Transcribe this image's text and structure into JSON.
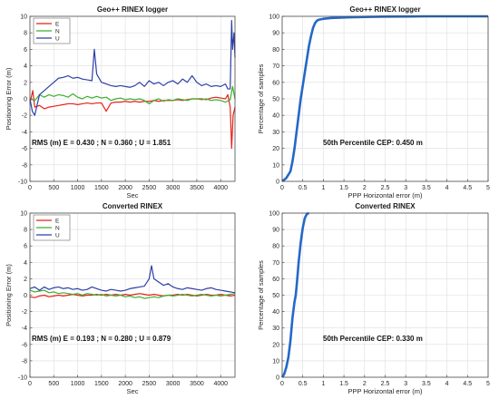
{
  "chart_data": [
    {
      "id": "ts1",
      "type": "line",
      "title": "Geo++ RINEX logger",
      "xlabel": "Sec",
      "ylabel": "Positioning Error (m)",
      "xlim": [
        0,
        4300
      ],
      "ylim": [
        -10,
        10
      ],
      "xticks": [
        0,
        500,
        1000,
        1500,
        2000,
        2500,
        3000,
        3500,
        4000
      ],
      "yticks": [
        -10,
        -8,
        -6,
        -4,
        -2,
        0,
        2,
        4,
        6,
        8,
        10
      ],
      "grid": true,
      "legend": "top-left",
      "annotation": "RMS (m) E = 0.430 ; N = 0.360 ; U = 1.851",
      "series": [
        {
          "name": "E",
          "color": "#e8211b",
          "x": [
            0,
            60,
            100,
            200,
            300,
            400,
            500,
            600,
            700,
            800,
            900,
            1000,
            1100,
            1200,
            1300,
            1400,
            1500,
            1600,
            1700,
            1800,
            1900,
            2000,
            2100,
            2200,
            2300,
            2400,
            2500,
            2600,
            2700,
            2800,
            2900,
            3000,
            3100,
            3200,
            3300,
            3400,
            3500,
            3600,
            3700,
            3800,
            3900,
            4000,
            4100,
            4150,
            4200,
            4230,
            4260,
            4300
          ],
          "y": [
            -0.5,
            1.0,
            -1.0,
            -0.8,
            -1.2,
            -1.0,
            -0.9,
            -0.8,
            -0.7,
            -0.6,
            -0.6,
            -0.7,
            -0.6,
            -0.5,
            -0.6,
            -0.5,
            -0.5,
            -1.5,
            -0.5,
            -0.4,
            -0.4,
            -0.3,
            -0.4,
            -0.3,
            -0.4,
            -0.3,
            -0.3,
            -0.2,
            -0.3,
            -0.2,
            -0.2,
            -0.2,
            -0.1,
            -0.2,
            -0.1,
            0.0,
            0.0,
            0.0,
            -0.1,
            0.1,
            0.2,
            0.1,
            0.0,
            0.5,
            -1.0,
            -6.0,
            -2.0,
            -1.0
          ]
        },
        {
          "name": "N",
          "color": "#3caf2e",
          "x": [
            0,
            100,
            200,
            300,
            400,
            500,
            600,
            700,
            800,
            900,
            1000,
            1100,
            1200,
            1300,
            1400,
            1500,
            1600,
            1700,
            1800,
            1900,
            2000,
            2100,
            2200,
            2300,
            2400,
            2500,
            2600,
            2700,
            2800,
            2900,
            3000,
            3100,
            3200,
            3300,
            3400,
            3500,
            3600,
            3700,
            3800,
            3900,
            4000,
            4100,
            4200,
            4250,
            4300
          ],
          "y": [
            0.0,
            -0.2,
            0.5,
            0.2,
            0.5,
            0.3,
            0.5,
            0.4,
            0.2,
            0.6,
            0.2,
            0.0,
            0.3,
            0.1,
            0.3,
            0.1,
            0.2,
            -0.2,
            0.0,
            0.1,
            -0.1,
            0.0,
            -0.1,
            0.0,
            -0.2,
            -0.6,
            -0.2,
            0.0,
            -0.3,
            -0.1,
            -0.2,
            0.0,
            -0.1,
            -0.2,
            0.0,
            0.0,
            -0.1,
            0.0,
            -0.2,
            -0.1,
            -0.2,
            -0.4,
            -0.1,
            1.5,
            0.0
          ]
        },
        {
          "name": "U",
          "color": "#2e3fa8",
          "x": [
            0,
            50,
            100,
            200,
            300,
            400,
            500,
            600,
            700,
            800,
            900,
            1000,
            1100,
            1200,
            1300,
            1350,
            1400,
            1500,
            1600,
            1700,
            1800,
            1900,
            2000,
            2100,
            2200,
            2300,
            2400,
            2500,
            2600,
            2700,
            2800,
            2900,
            3000,
            3100,
            3200,
            3300,
            3400,
            3500,
            3600,
            3700,
            3800,
            3900,
            4000,
            4100,
            4150,
            4200,
            4230,
            4250,
            4280,
            4300
          ],
          "y": [
            0.0,
            -1.5,
            -2.0,
            0.5,
            1.0,
            1.5,
            2.0,
            2.5,
            2.6,
            2.8,
            2.5,
            2.6,
            2.4,
            2.3,
            2.2,
            6.0,
            3.0,
            2.0,
            1.8,
            1.6,
            1.5,
            1.6,
            1.5,
            1.4,
            1.6,
            2.0,
            1.5,
            2.2,
            1.8,
            2.0,
            1.6,
            2.0,
            2.2,
            1.8,
            2.4,
            2.0,
            2.8,
            2.0,
            1.6,
            1.8,
            1.5,
            1.6,
            1.5,
            1.8,
            1.2,
            1.2,
            9.5,
            6.0,
            8.0,
            5.0
          ]
        }
      ]
    },
    {
      "id": "cdf1",
      "type": "line",
      "title": "Geo++ RINEX logger",
      "xlabel": "PPP Horizontal error (m)",
      "ylabel": "Percentage of samples",
      "xlim": [
        0,
        5
      ],
      "ylim": [
        0,
        100
      ],
      "xticks": [
        "0",
        "0.5",
        "1",
        "1.5",
        "2",
        "2.5",
        "3",
        "3.5",
        "4",
        "4.5",
        "5"
      ],
      "yticks": [
        0,
        10,
        20,
        30,
        40,
        50,
        60,
        70,
        80,
        90,
        100
      ],
      "grid": true,
      "annotation": "50th Percentile CEP: 0.450 m",
      "series": [
        {
          "color": "#2468c8",
          "x": [
            0.0,
            0.1,
            0.2,
            0.25,
            0.3,
            0.35,
            0.4,
            0.45,
            0.5,
            0.55,
            0.6,
            0.65,
            0.7,
            0.75,
            0.8,
            0.85,
            0.9,
            1.0,
            1.2,
            1.5,
            2.0,
            2.5,
            3.0,
            3.5,
            4.0,
            4.5,
            5.0
          ],
          "y": [
            0,
            2,
            6,
            12,
            20,
            30,
            40,
            50,
            58,
            66,
            74,
            82,
            88,
            93,
            96,
            97.5,
            98,
            98.5,
            99,
            99.3,
            99.6,
            99.8,
            99.9,
            100,
            100,
            100,
            100
          ]
        }
      ]
    },
    {
      "id": "ts2",
      "type": "line",
      "title": "Converted RINEX",
      "xlabel": "Sec",
      "ylabel": "Positioning Error (m)",
      "xlim": [
        0,
        4300
      ],
      "ylim": [
        -10,
        10
      ],
      "xticks": [
        0,
        500,
        1000,
        1500,
        2000,
        2500,
        3000,
        3500,
        4000
      ],
      "yticks": [
        -10,
        -8,
        -6,
        -4,
        -2,
        0,
        2,
        4,
        6,
        8,
        10
      ],
      "grid": true,
      "legend": "top-left",
      "annotation": "RMS (m) E = 0.193 ; N = 0.280 ; U = 0.879",
      "series": [
        {
          "name": "E",
          "color": "#e8211b",
          "x": [
            0,
            100,
            200,
            300,
            400,
            500,
            600,
            700,
            800,
            900,
            1000,
            1100,
            1200,
            1300,
            1400,
            1500,
            1600,
            1700,
            1800,
            1900,
            2000,
            2100,
            2200,
            2300,
            2400,
            2500,
            2600,
            2700,
            2800,
            2900,
            3000,
            3100,
            3200,
            3300,
            3400,
            3500,
            3600,
            3700,
            3800,
            3900,
            4000,
            4100,
            4200,
            4300
          ],
          "y": [
            -0.2,
            -0.3,
            -0.1,
            0.0,
            -0.2,
            -0.1,
            0.0,
            -0.1,
            0.0,
            0.1,
            0.0,
            -0.1,
            0.0,
            0.0,
            0.1,
            0.0,
            0.1,
            0.0,
            0.1,
            0.0,
            0.1,
            0.0,
            0.1,
            0.2,
            0.1,
            0.0,
            0.1,
            0.0,
            -0.1,
            0.0,
            0.0,
            0.1,
            0.0,
            0.1,
            0.0,
            -0.1,
            0.0,
            0.1,
            0.0,
            0.0,
            0.1,
            0.0,
            -0.1,
            0.0
          ]
        },
        {
          "name": "N",
          "color": "#3caf2e",
          "x": [
            0,
            100,
            200,
            300,
            400,
            500,
            600,
            700,
            800,
            900,
            1000,
            1100,
            1200,
            1300,
            1400,
            1500,
            1600,
            1700,
            1800,
            1900,
            2000,
            2100,
            2200,
            2300,
            2400,
            2500,
            2600,
            2700,
            2800,
            2900,
            3000,
            3100,
            3200,
            3300,
            3400,
            3500,
            3600,
            3700,
            3800,
            3900,
            4000,
            4100,
            4200,
            4300
          ],
          "y": [
            0.6,
            0.4,
            0.5,
            0.6,
            0.3,
            0.4,
            0.2,
            0.3,
            0.2,
            0.1,
            0.2,
            0.0,
            0.2,
            0.1,
            0.0,
            0.1,
            -0.1,
            0.0,
            -0.1,
            0.0,
            -0.2,
            -0.1,
            -0.3,
            -0.2,
            -0.4,
            -0.3,
            -0.2,
            -0.3,
            -0.1,
            0.0,
            -0.1,
            0.0,
            0.1,
            0.0,
            -0.1,
            0.0,
            0.1,
            0.0,
            -0.1,
            0.0,
            -0.1,
            0.0,
            0.1,
            0.2
          ]
        },
        {
          "name": "U",
          "color": "#2e3fa8",
          "x": [
            0,
            100,
            200,
            300,
            400,
            500,
            600,
            700,
            800,
            900,
            1000,
            1100,
            1200,
            1300,
            1400,
            1500,
            1600,
            1700,
            1800,
            1900,
            2000,
            2100,
            2200,
            2300,
            2400,
            2500,
            2550,
            2600,
            2700,
            2800,
            2900,
            3000,
            3100,
            3200,
            3300,
            3400,
            3500,
            3600,
            3700,
            3800,
            3900,
            4000,
            4100,
            4200,
            4300
          ],
          "y": [
            0.8,
            1.0,
            0.6,
            1.0,
            0.7,
            0.9,
            1.0,
            0.8,
            0.9,
            0.7,
            0.8,
            0.6,
            0.7,
            1.0,
            0.8,
            0.6,
            0.5,
            0.7,
            0.6,
            0.5,
            0.6,
            0.8,
            0.9,
            1.0,
            1.1,
            2.0,
            3.6,
            2.0,
            1.6,
            1.2,
            1.4,
            1.0,
            0.8,
            0.7,
            0.9,
            0.8,
            0.7,
            0.6,
            0.8,
            0.9,
            0.7,
            0.6,
            0.5,
            0.4,
            0.3
          ]
        }
      ]
    },
    {
      "id": "cdf2",
      "type": "line",
      "title": "Converted RINEX",
      "xlabel": "PPP Horizontal error (m)",
      "ylabel": "Percentage of samples",
      "xlim": [
        0,
        5
      ],
      "ylim": [
        0,
        100
      ],
      "xticks": [
        "0",
        "0.5",
        "1",
        "1.5",
        "2",
        "2.5",
        "3",
        "3.5",
        "4",
        "4.5",
        "5"
      ],
      "yticks": [
        0,
        10,
        20,
        30,
        40,
        50,
        60,
        70,
        80,
        90,
        100
      ],
      "grid": true,
      "annotation": "50th Percentile CEP: 0.330 m",
      "series": [
        {
          "color": "#2468c8",
          "x": [
            0.0,
            0.05,
            0.1,
            0.15,
            0.2,
            0.25,
            0.3,
            0.33,
            0.36,
            0.4,
            0.45,
            0.5,
            0.55,
            0.6,
            0.65
          ],
          "y": [
            0,
            2,
            6,
            12,
            22,
            36,
            46,
            50,
            58,
            70,
            82,
            91,
            97,
            99.5,
            100
          ]
        }
      ]
    }
  ]
}
